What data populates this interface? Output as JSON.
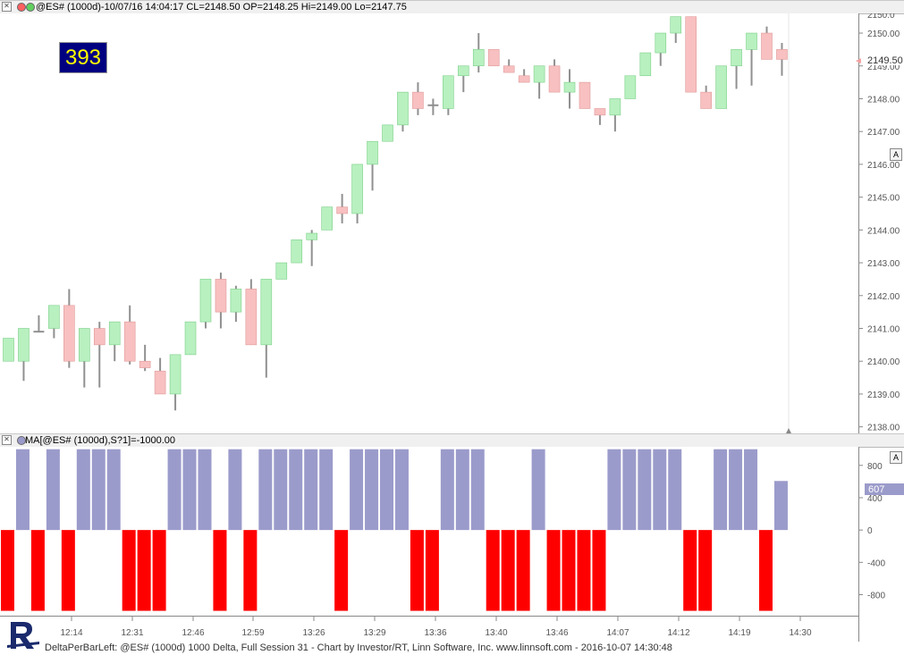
{
  "price_panel": {
    "title": "@ES# (1000d)-10/07/16 14:04:17 CL=2148.50 OP=2148.25 Hi=2149.00 Lo=2147.75",
    "badge": "393",
    "current_price_label": "2149.50",
    "top_partial_label": "2150.0",
    "autoscale_label": "A"
  },
  "indicator_panel": {
    "title": "MA[@ES# (1000d),S?1]=-1000.00",
    "current_value_label": "607",
    "autoscale_label": "A"
  },
  "footer": "DeltaPerBarLeft: @ES# (1000d) 1000 Delta, Full Session 31 - Chart by Investor/RT, Linn Software, Inc. www.linnsoft.com - 2016-10-07 14:30:48",
  "colors": {
    "up_fill": "#b8f0c0",
    "down_fill": "#f8c0c0",
    "wick": "#909090",
    "delta_positive": "#9b9bcb",
    "delta_negative": "#ff0000"
  },
  "chart_data": [
    {
      "type": "candlestick",
      "y_ticks": [
        "2150.00",
        "2149.00",
        "2148.00",
        "2147.00",
        "2146.00",
        "2145.00",
        "2144.00",
        "2143.00",
        "2142.00",
        "2141.00",
        "2140.00",
        "2139.00",
        "2138.00"
      ],
      "ylim": [
        2137.8,
        2150.6
      ],
      "bars": [
        {
          "o": 2140.0,
          "h": 2140.7,
          "l": 2140.0,
          "c": 2140.7
        },
        {
          "o": 2140.0,
          "h": 2141.0,
          "l": 2139.4,
          "c": 2141.0
        },
        {
          "o": 2140.9,
          "h": 2141.4,
          "l": 2140.9,
          "c": 2140.9
        },
        {
          "o": 2141.0,
          "h": 2141.7,
          "l": 2140.7,
          "c": 2141.7
        },
        {
          "o": 2141.7,
          "h": 2142.2,
          "l": 2139.8,
          "c": 2140.0
        },
        {
          "o": 2140.0,
          "h": 2141.0,
          "l": 2139.2,
          "c": 2141.0
        },
        {
          "o": 2141.0,
          "h": 2141.2,
          "l": 2139.2,
          "c": 2140.5
        },
        {
          "o": 2140.5,
          "h": 2141.2,
          "l": 2140.0,
          "c": 2141.2
        },
        {
          "o": 2141.2,
          "h": 2141.7,
          "l": 2139.9,
          "c": 2140.0
        },
        {
          "o": 2140.0,
          "h": 2140.5,
          "l": 2139.7,
          "c": 2139.8
        },
        {
          "o": 2139.7,
          "h": 2140.1,
          "l": 2139.0,
          "c": 2139.0
        },
        {
          "o": 2139.0,
          "h": 2140.2,
          "l": 2138.5,
          "c": 2140.2
        },
        {
          "o": 2140.2,
          "h": 2141.2,
          "l": 2140.2,
          "c": 2141.2
        },
        {
          "o": 2141.2,
          "h": 2142.5,
          "l": 2141.0,
          "c": 2142.5
        },
        {
          "o": 2142.5,
          "h": 2142.7,
          "l": 2141.0,
          "c": 2141.5
        },
        {
          "o": 2141.5,
          "h": 2142.3,
          "l": 2141.2,
          "c": 2142.2
        },
        {
          "o": 2142.2,
          "h": 2142.5,
          "l": 2140.5,
          "c": 2140.5
        },
        {
          "o": 2140.5,
          "h": 2142.5,
          "l": 2139.5,
          "c": 2142.5
        },
        {
          "o": 2142.5,
          "h": 2143.0,
          "l": 2142.5,
          "c": 2143.0
        },
        {
          "o": 2143.0,
          "h": 2143.7,
          "l": 2143.0,
          "c": 2143.7
        },
        {
          "o": 2143.7,
          "h": 2144.0,
          "l": 2142.9,
          "c": 2143.9
        },
        {
          "o": 2144.0,
          "h": 2144.7,
          "l": 2144.0,
          "c": 2144.7
        },
        {
          "o": 2144.7,
          "h": 2145.1,
          "l": 2144.2,
          "c": 2144.5
        },
        {
          "o": 2144.5,
          "h": 2146.0,
          "l": 2144.2,
          "c": 2146.0
        },
        {
          "o": 2146.0,
          "h": 2146.7,
          "l": 2145.2,
          "c": 2146.7
        },
        {
          "o": 2146.7,
          "h": 2147.2,
          "l": 2146.7,
          "c": 2147.2
        },
        {
          "o": 2147.2,
          "h": 2148.2,
          "l": 2147.0,
          "c": 2148.2
        },
        {
          "o": 2148.2,
          "h": 2148.5,
          "l": 2147.5,
          "c": 2147.7
        },
        {
          "o": 2147.8,
          "h": 2148.0,
          "l": 2147.5,
          "c": 2147.8
        },
        {
          "o": 2147.7,
          "h": 2148.7,
          "l": 2147.5,
          "c": 2148.7
        },
        {
          "o": 2148.7,
          "h": 2149.0,
          "l": 2148.2,
          "c": 2149.0
        },
        {
          "o": 2149.0,
          "h": 2150.0,
          "l": 2148.8,
          "c": 2149.5
        },
        {
          "o": 2149.5,
          "h": 2149.5,
          "l": 2149.0,
          "c": 2149.0
        },
        {
          "o": 2149.0,
          "h": 2149.2,
          "l": 2148.8,
          "c": 2148.8
        },
        {
          "o": 2148.7,
          "h": 2148.9,
          "l": 2148.6,
          "c": 2148.5
        },
        {
          "o": 2148.5,
          "h": 2149.0,
          "l": 2148.0,
          "c": 2149.0
        },
        {
          "o": 2149.0,
          "h": 2149.2,
          "l": 2148.2,
          "c": 2148.2
        },
        {
          "o": 2148.2,
          "h": 2148.9,
          "l": 2147.7,
          "c": 2148.5
        },
        {
          "o": 2148.5,
          "h": 2148.5,
          "l": 2147.7,
          "c": 2147.7
        },
        {
          "o": 2147.7,
          "h": 2147.7,
          "l": 2147.2,
          "c": 2147.5
        },
        {
          "o": 2147.5,
          "h": 2148.0,
          "l": 2147.0,
          "c": 2148.0
        },
        {
          "o": 2148.0,
          "h": 2148.7,
          "l": 2148.0,
          "c": 2148.7
        },
        {
          "o": 2148.7,
          "h": 2149.4,
          "l": 2148.7,
          "c": 2149.4
        },
        {
          "o": 2149.4,
          "h": 2150.0,
          "l": 2149.0,
          "c": 2150.0
        },
        {
          "o": 2150.0,
          "h": 2150.5,
          "l": 2149.7,
          "c": 2150.5
        },
        {
          "o": 2150.5,
          "h": 2150.5,
          "l": 2148.2,
          "c": 2148.2
        },
        {
          "o": 2148.2,
          "h": 2148.4,
          "l": 2147.7,
          "c": 2147.7
        },
        {
          "o": 2147.7,
          "h": 2149.0,
          "l": 2147.7,
          "c": 2149.0
        },
        {
          "o": 2149.0,
          "h": 2149.5,
          "l": 2148.3,
          "c": 2149.5
        },
        {
          "o": 2149.5,
          "h": 2150.0,
          "l": 2148.4,
          "c": 2150.0
        },
        {
          "o": 2150.0,
          "h": 2150.2,
          "l": 2149.2,
          "c": 2149.2
        },
        {
          "o": 2149.5,
          "h": 2149.7,
          "l": 2148.7,
          "c": 2149.2
        }
      ]
    },
    {
      "type": "bar",
      "y_ticks": [
        "800",
        "400",
        "0",
        "-400",
        "-800"
      ],
      "ylim": [
        -1060,
        1030
      ],
      "x_ticks": [
        "12:14",
        "12:31",
        "12:46",
        "12:59",
        "13:26",
        "13:29",
        "13:36",
        "13:40",
        "13:46",
        "14:07",
        "14:12",
        "14:19",
        "14:30"
      ],
      "values": [
        -1000,
        1000,
        -1000,
        1000,
        -1000,
        1000,
        1000,
        1000,
        -1000,
        -1000,
        -1000,
        1000,
        1000,
        1000,
        -1000,
        1000,
        -1000,
        1000,
        1000,
        1000,
        1000,
        1000,
        -1000,
        1000,
        1000,
        1000,
        1000,
        -1000,
        -1000,
        1000,
        1000,
        1000,
        -1000,
        -1000,
        -1000,
        1000,
        -1000,
        -1000,
        -1000,
        -1000,
        1000,
        1000,
        1000,
        1000,
        1000,
        -1000,
        -1000,
        1000,
        1000,
        1000,
        -1000,
        607
      ]
    }
  ]
}
